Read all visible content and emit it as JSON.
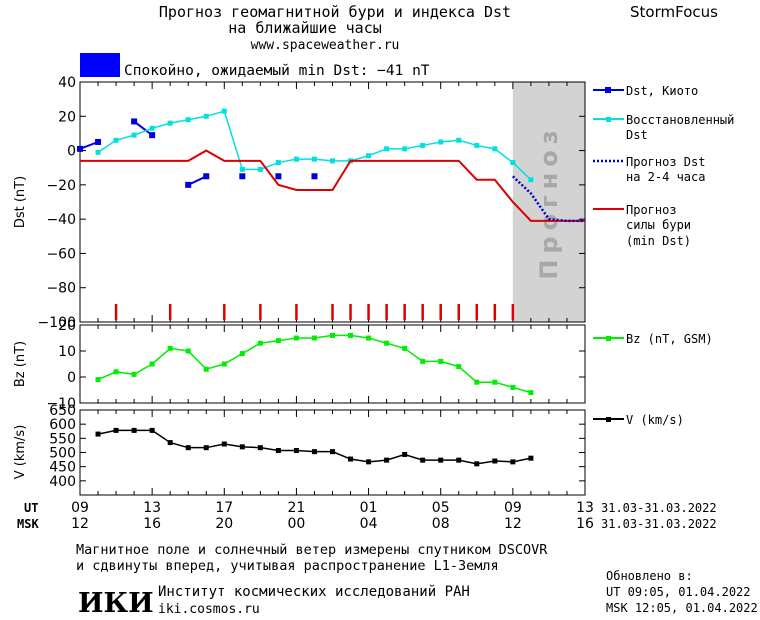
{
  "header": {
    "title_line1": "Прогноз геомагнитной бури и индекса Dst",
    "title_line2": "на ближайшие часы",
    "site": "www.spaceweather.ru",
    "brand": "StormFocus"
  },
  "status": {
    "text": "Спокойно, ожидаемый min Dst: −41 nT",
    "color": "#0000ff"
  },
  "forecast_label": "Прогноз",
  "legends": {
    "dst_kyoto": "Dst, Киото",
    "restored_1": "Восстановленный",
    "restored_2": "Dst",
    "forecast_1": "Прогноз Dst",
    "forecast_2": "на 2-4 часа",
    "storm_1": "Прогноз",
    "storm_2": "силы бури",
    "storm_3": "(min Dst)",
    "bz": "Bz (nT, GSM)",
    "v": "V (km/s)"
  },
  "axes": {
    "ut_label": "UT",
    "msk_label": "MSK",
    "ut_ticks": [
      "09",
      "13",
      "17",
      "21",
      "01",
      "05",
      "09",
      "13"
    ],
    "msk_ticks": [
      "12",
      "16",
      "20",
      "00",
      "04",
      "08",
      "12",
      "16"
    ],
    "ut_range": "31.03-31.03.2022",
    "msk_range": "31.03-31.03.2022"
  },
  "footer": {
    "note_1": "Магнитное поле и солнечный ветер измерены спутником DSCOVR",
    "note_2": "и сдвинуты вперед, учитывая распространение L1-Земля",
    "logo": "ИКИ",
    "inst_name": "Институт космических исследований РАН",
    "inst_site": "iki.cosmos.ru",
    "updated_label": "Обновлено в:",
    "updated_ut": "UT  09:05, 01.04.2022",
    "updated_msk": "MSK 12:05, 01.04.2022"
  },
  "chart_data": [
    {
      "type": "line",
      "ylabel": "Dst (nT)",
      "ylim": [
        -100,
        40
      ],
      "yticks": [
        40,
        20,
        0,
        -20,
        -40,
        -60,
        -80,
        -100
      ],
      "x_unit": "hours since 09:00 UT",
      "xlim": [
        0,
        28
      ],
      "forecast_start": 24,
      "series": [
        {
          "name": "Dst, Киото",
          "color": "#0000dd",
          "x": [
            0,
            1,
            3,
            4,
            6,
            7,
            9,
            11,
            13
          ],
          "y": [
            1,
            5,
            17,
            9,
            -20,
            -15,
            -15,
            -15,
            -15
          ],
          "connect": [
            [
              0,
              1
            ],
            [
              2,
              3
            ],
            [
              4,
              5
            ]
          ]
        },
        {
          "name": "Восстановленный Dst",
          "color": "#00e0e0",
          "x": [
            1,
            2,
            3,
            4,
            5,
            6,
            7,
            8,
            9,
            10,
            11,
            12,
            13,
            14,
            15,
            16,
            17,
            18,
            19,
            20,
            21,
            22,
            23,
            24,
            25
          ],
          "y": [
            -1,
            6,
            9,
            13,
            16,
            18,
            20,
            23,
            -11,
            -11,
            -7,
            -5,
            -5,
            -6,
            -6,
            -3,
            1,
            1,
            3,
            5,
            6,
            3,
            1,
            -7,
            -17
          ]
        },
        {
          "name": "Прогноз Dst на 2-4 часа",
          "color": "#0000cc",
          "x": [
            24,
            25,
            26,
            27,
            28
          ],
          "y": [
            -15,
            -25,
            -40,
            -41,
            -41
          ]
        },
        {
          "name": "Прогноз силы бури (min Dst)",
          "color": "#dd0000",
          "x": [
            0,
            6,
            7,
            8,
            10,
            11,
            12,
            14,
            15,
            21,
            22,
            23,
            24,
            25,
            28
          ],
          "y": [
            -6,
            -6,
            0,
            -6,
            -6,
            -20,
            -23,
            -23,
            -6,
            -6,
            -17,
            -17,
            -30,
            -41,
            -41
          ]
        }
      ],
      "markers_x": [
        2,
        5,
        8,
        10,
        12,
        14,
        15,
        16,
        17,
        18,
        19,
        20,
        21,
        22,
        23,
        24
      ]
    },
    {
      "type": "line",
      "ylabel": "Bz (nT)",
      "ylim": [
        -10,
        20
      ],
      "yticks": [
        20,
        10,
        0,
        -10
      ],
      "series": [
        {
          "name": "Bz (nT, GSM)",
          "color": "#00ee00",
          "x": [
            1,
            2,
            3,
            4,
            5,
            6,
            7,
            8,
            9,
            10,
            11,
            12,
            13,
            14,
            15,
            16,
            17,
            18,
            19,
            20,
            21,
            22,
            23,
            24,
            25
          ],
          "y": [
            -1,
            2,
            1,
            5,
            11,
            10,
            3,
            5,
            9,
            13,
            14,
            15,
            15,
            16,
            16,
            15,
            13,
            11,
            6,
            6,
            4,
            -2,
            -2,
            -4,
            -6
          ]
        }
      ]
    },
    {
      "type": "line",
      "ylabel": "V (km/s)",
      "ylim": [
        350,
        650
      ],
      "yticks": [
        650,
        600,
        550,
        500,
        450,
        400
      ],
      "series": [
        {
          "name": "V (km/s)",
          "color": "#000000",
          "x": [
            1,
            2,
            3,
            4,
            5,
            6,
            7,
            8,
            9,
            10,
            11,
            12,
            13,
            14,
            15,
            16,
            17,
            18,
            19,
            20,
            21,
            22,
            23,
            24,
            25
          ],
          "y": [
            565,
            578,
            578,
            578,
            535,
            517,
            517,
            530,
            520,
            517,
            507,
            507,
            503,
            503,
            477,
            467,
            473,
            493,
            473,
            473,
            473,
            460,
            470,
            467,
            480
          ]
        }
      ]
    }
  ]
}
